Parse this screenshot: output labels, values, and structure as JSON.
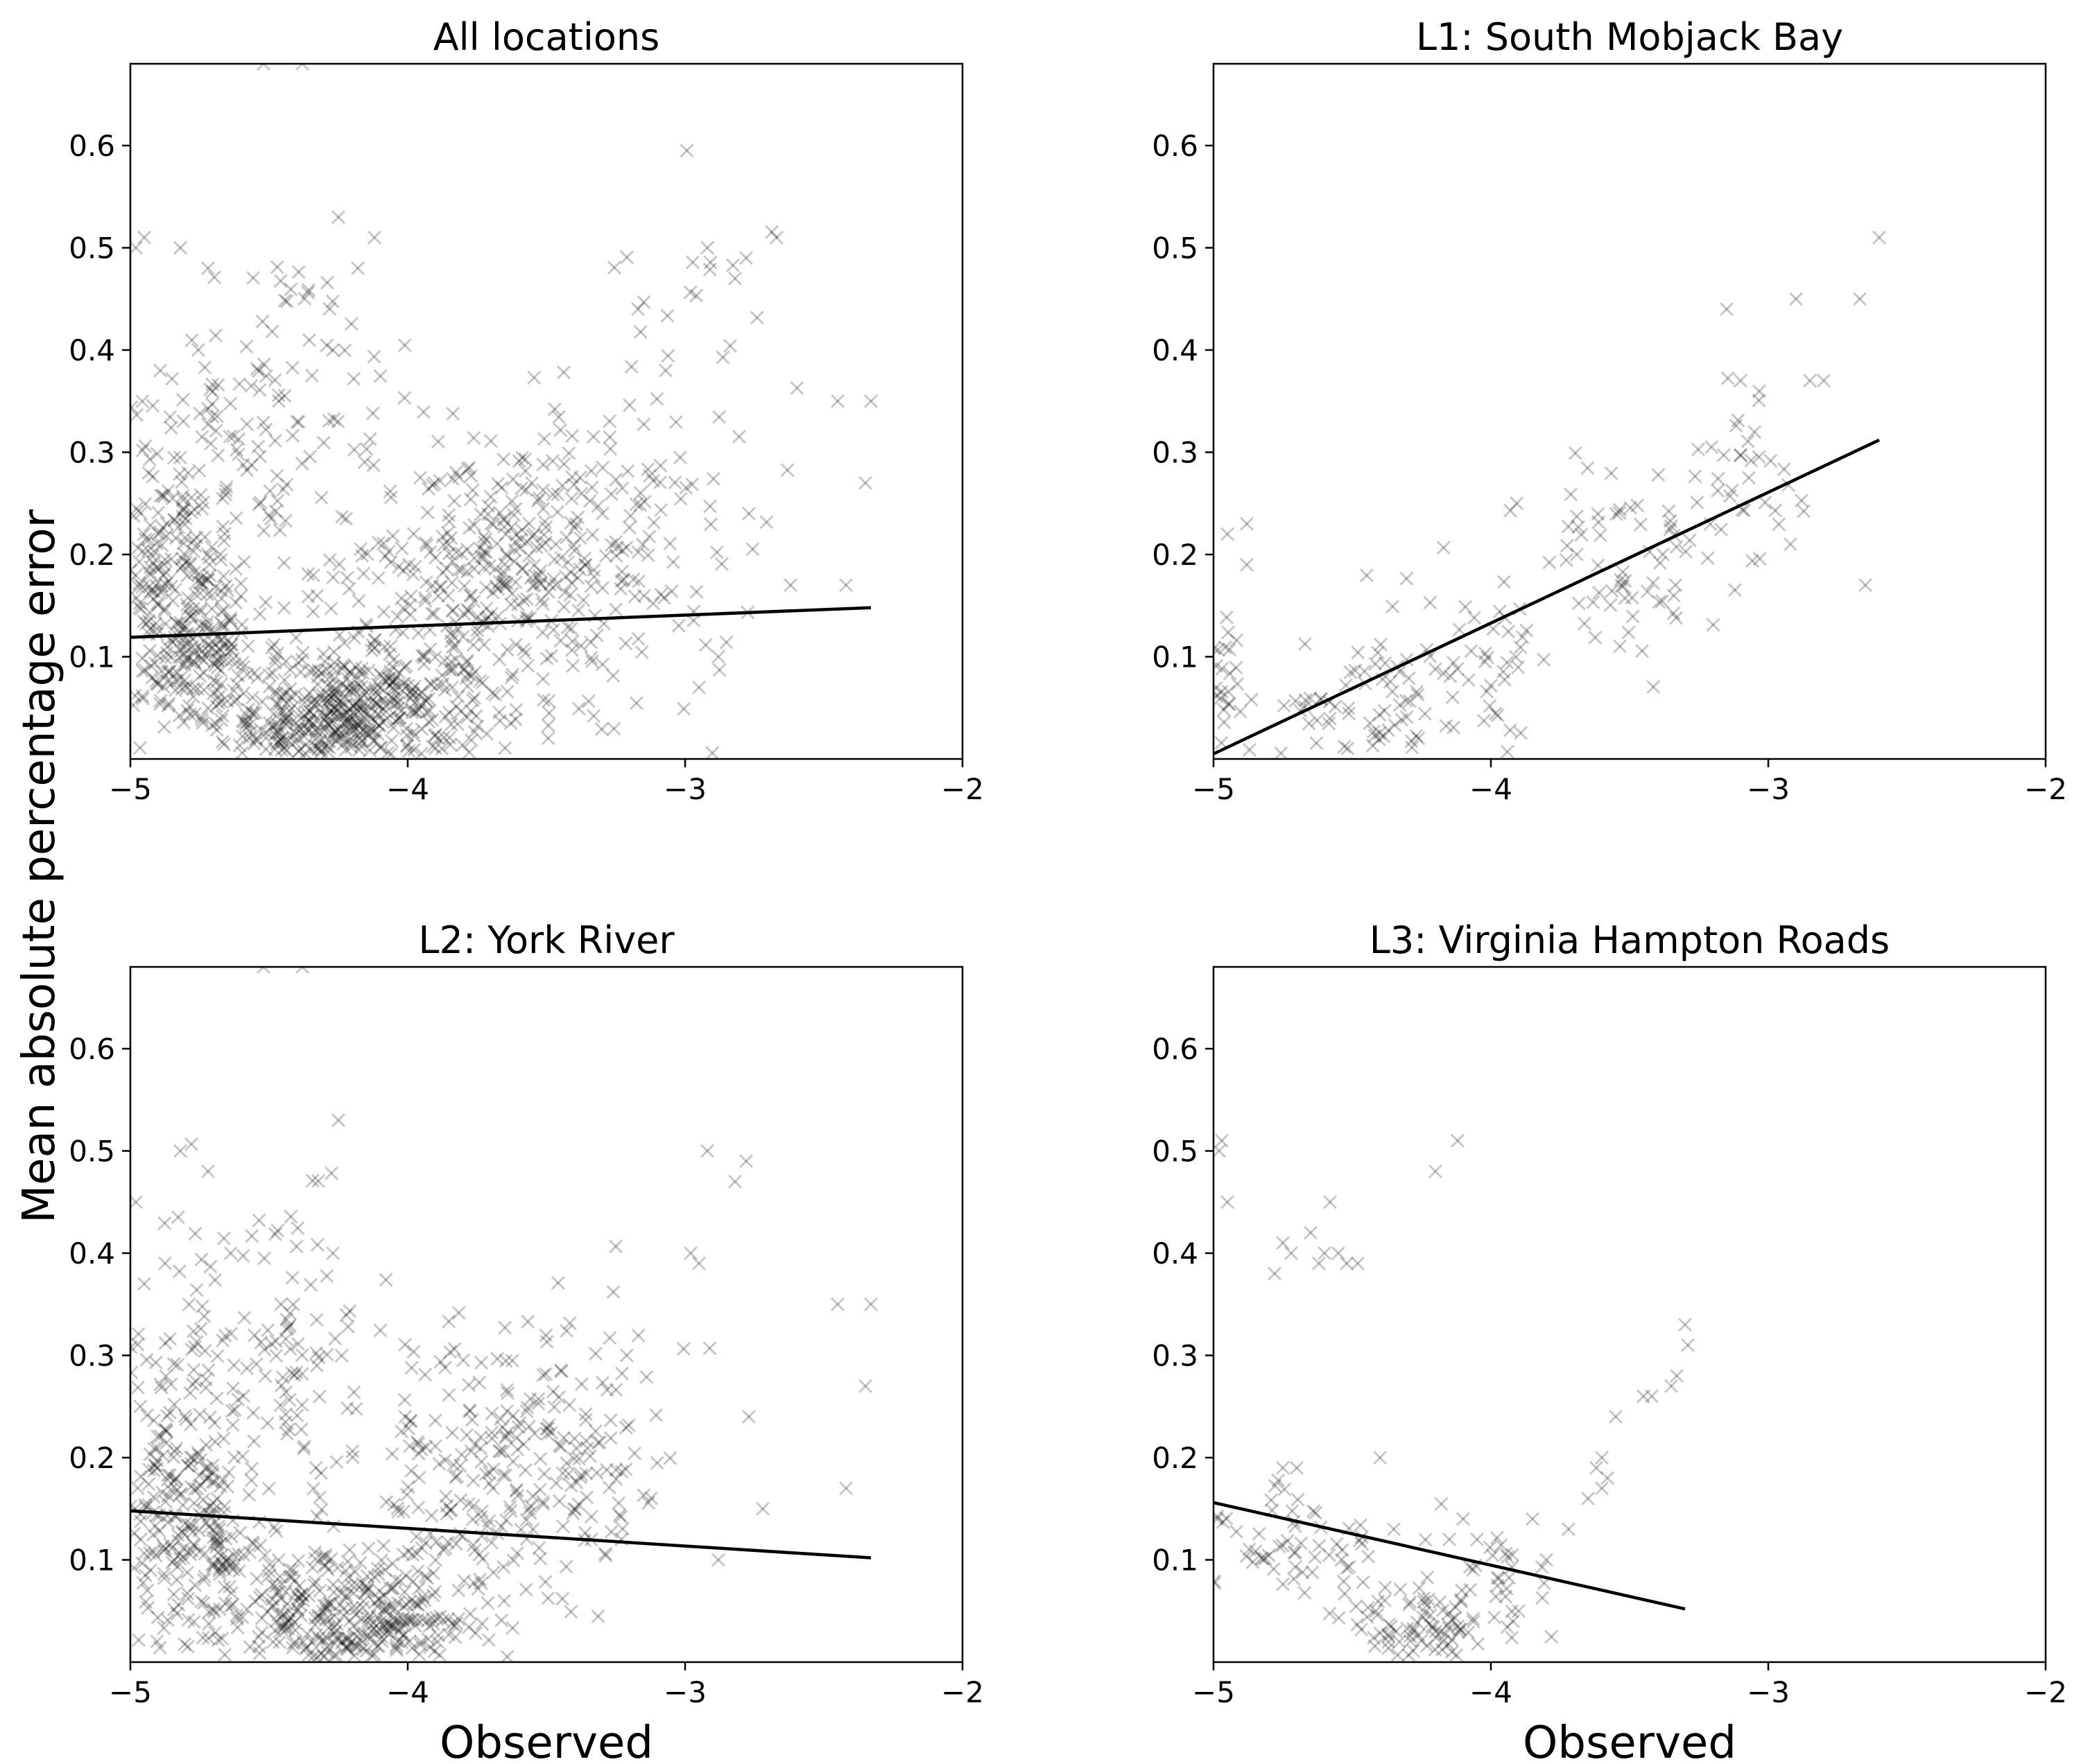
{
  "figure": {
    "ylabel": "Mean absolute percentage error",
    "xlabel": "Observed"
  },
  "chart_data": [
    {
      "type": "scatter",
      "title": "All locations",
      "xlabel": "",
      "ylabel": "",
      "xlim": [
        -5,
        -2
      ],
      "ylim": [
        0,
        0.68
      ],
      "xticks": [
        -5,
        -4,
        -3,
        -2
      ],
      "yticks": [
        0.1,
        0.2,
        0.3,
        0.4,
        0.5,
        0.6
      ],
      "marker": "x",
      "marker_color": "#000000",
      "grid": false,
      "clusters": [
        {
          "cx": -4.22,
          "cy": 0.04,
          "sx": 0.22,
          "sy": 0.035,
          "n": 520
        },
        {
          "cx": -4.85,
          "cy": 0.15,
          "sx": 0.12,
          "sy": 0.07,
          "n": 260
        },
        {
          "cx": -3.75,
          "cy": 0.17,
          "sx": 0.22,
          "sy": 0.07,
          "n": 280
        },
        {
          "cx": -3.35,
          "cy": 0.22,
          "sx": 0.18,
          "sy": 0.08,
          "n": 120
        },
        {
          "cx": -4.55,
          "cy": 0.3,
          "sx": 0.25,
          "sy": 0.08,
          "n": 150
        },
        {
          "cx": -4.7,
          "cy": 0.11,
          "sx": 0.06,
          "sy": 0.03,
          "n": 60
        },
        {
          "cx": -3.0,
          "cy": 0.3,
          "sx": 0.2,
          "sy": 0.12,
          "n": 60
        }
      ],
      "points": [
        {
          "x": -4.98,
          "y": 0.5
        },
        {
          "x": -4.95,
          "y": 0.51
        },
        {
          "x": -4.82,
          "y": 0.5
        },
        {
          "x": -4.72,
          "y": 0.48
        },
        {
          "x": -4.25,
          "y": 0.53
        },
        {
          "x": -4.12,
          "y": 0.51
        },
        {
          "x": -4.18,
          "y": 0.48
        },
        {
          "x": -4.52,
          "y": 0.68
        },
        {
          "x": -4.38,
          "y": 0.68
        },
        {
          "x": -4.27,
          "y": 0.4
        },
        {
          "x": -2.92,
          "y": 0.5
        },
        {
          "x": -2.78,
          "y": 0.49
        },
        {
          "x": -2.67,
          "y": 0.51
        },
        {
          "x": -2.82,
          "y": 0.47
        },
        {
          "x": -2.45,
          "y": 0.35
        },
        {
          "x": -2.33,
          "y": 0.35
        },
        {
          "x": -2.35,
          "y": 0.27
        },
        {
          "x": -2.42,
          "y": 0.17
        },
        {
          "x": -2.62,
          "y": 0.17
        },
        {
          "x": -2.77,
          "y": 0.24
        },
        {
          "x": -3.07,
          "y": 0.38
        },
        {
          "x": -3.17,
          "y": 0.44
        },
        {
          "x": -2.88,
          "y": 0.1
        },
        {
          "x": -2.95,
          "y": 0.07
        }
      ],
      "fit_line": {
        "x": [
          -5,
          -2.33
        ],
        "y": [
          0.119,
          0.148
        ]
      }
    },
    {
      "type": "scatter",
      "title": "L1: South Mobjack Bay",
      "xlabel": "",
      "ylabel": "",
      "xlim": [
        -5,
        -2
      ],
      "ylim": [
        0,
        0.68
      ],
      "xticks": [
        -5,
        -4,
        -3,
        -2
      ],
      "yticks": [
        0.1,
        0.2,
        0.3,
        0.4,
        0.5,
        0.6
      ],
      "marker": "x",
      "marker_color": "#000000",
      "grid": false,
      "clusters": [
        {
          "cx": -4.97,
          "cy": 0.08,
          "sx": 0.03,
          "sy": 0.025,
          "n": 25
        },
        {
          "cx": -4.5,
          "cy": 0.05,
          "sx": 0.22,
          "sy": 0.03,
          "n": 70
        },
        {
          "cx": -4.05,
          "cy": 0.09,
          "sx": 0.15,
          "sy": 0.05,
          "n": 50
        },
        {
          "cx": -3.55,
          "cy": 0.2,
          "sx": 0.2,
          "sy": 0.05,
          "n": 70
        },
        {
          "cx": -3.15,
          "cy": 0.27,
          "sx": 0.15,
          "sy": 0.05,
          "n": 35
        }
      ],
      "points": [
        {
          "x": -2.6,
          "y": 0.51
        },
        {
          "x": -2.67,
          "y": 0.45
        },
        {
          "x": -2.9,
          "y": 0.45
        },
        {
          "x": -3.15,
          "y": 0.44
        },
        {
          "x": -2.8,
          "y": 0.37
        },
        {
          "x": -2.85,
          "y": 0.37
        },
        {
          "x": -3.1,
          "y": 0.37
        },
        {
          "x": -2.65,
          "y": 0.17
        },
        {
          "x": -2.92,
          "y": 0.21
        },
        {
          "x": -4.95,
          "y": 0.22
        },
        {
          "x": -4.88,
          "y": 0.23
        },
        {
          "x": -4.88,
          "y": 0.19
        }
      ],
      "fit_line": {
        "x": [
          -5,
          -2.6
        ],
        "y": [
          0.005,
          0.312
        ]
      }
    },
    {
      "type": "scatter",
      "title": "L2: York River",
      "xlabel": "Observed",
      "ylabel": "",
      "xlim": [
        -5,
        -2
      ],
      "ylim": [
        0,
        0.68
      ],
      "xticks": [
        -5,
        -4,
        -3,
        -2
      ],
      "yticks": [
        0.1,
        0.2,
        0.3,
        0.4,
        0.5,
        0.6
      ],
      "marker": "x",
      "marker_color": "#000000",
      "grid": false,
      "clusters": [
        {
          "cx": -4.2,
          "cy": 0.04,
          "sx": 0.22,
          "sy": 0.035,
          "n": 380
        },
        {
          "cx": -4.85,
          "cy": 0.16,
          "sx": 0.12,
          "sy": 0.07,
          "n": 220
        },
        {
          "cx": -3.75,
          "cy": 0.17,
          "sx": 0.22,
          "sy": 0.07,
          "n": 200
        },
        {
          "cx": -3.35,
          "cy": 0.21,
          "sx": 0.18,
          "sy": 0.07,
          "n": 80
        },
        {
          "cx": -4.55,
          "cy": 0.3,
          "sx": 0.25,
          "sy": 0.08,
          "n": 130
        },
        {
          "cx": -4.68,
          "cy": 0.11,
          "sx": 0.06,
          "sy": 0.03,
          "n": 50
        }
      ],
      "points": [
        {
          "x": -4.82,
          "y": 0.5
        },
        {
          "x": -4.72,
          "y": 0.48
        },
        {
          "x": -4.25,
          "y": 0.53
        },
        {
          "x": -4.52,
          "y": 0.68
        },
        {
          "x": -4.38,
          "y": 0.68
        },
        {
          "x": -4.27,
          "y": 0.4
        },
        {
          "x": -2.92,
          "y": 0.5
        },
        {
          "x": -2.78,
          "y": 0.49
        },
        {
          "x": -2.82,
          "y": 0.47
        },
        {
          "x": -2.45,
          "y": 0.35
        },
        {
          "x": -2.33,
          "y": 0.35
        },
        {
          "x": -2.35,
          "y": 0.27
        },
        {
          "x": -2.42,
          "y": 0.17
        },
        {
          "x": -2.72,
          "y": 0.15
        },
        {
          "x": -2.77,
          "y": 0.24
        },
        {
          "x": -2.98,
          "y": 0.4
        },
        {
          "x": -2.95,
          "y": 0.39
        },
        {
          "x": -2.88,
          "y": 0.1
        },
        {
          "x": -4.98,
          "y": 0.45
        },
        {
          "x": -4.95,
          "y": 0.37
        }
      ],
      "fit_line": {
        "x": [
          -5,
          -2.33
        ],
        "y": [
          0.148,
          0.102
        ]
      }
    },
    {
      "type": "scatter",
      "title": "L3: Virginia Hampton Roads",
      "xlabel": "Observed",
      "ylabel": "",
      "xlim": [
        -5,
        -2
      ],
      "ylim": [
        0,
        0.68
      ],
      "xticks": [
        -5,
        -4,
        -3,
        -2
      ],
      "yticks": [
        0.1,
        0.2,
        0.3,
        0.4,
        0.5,
        0.6
      ],
      "marker": "x",
      "marker_color": "#000000",
      "grid": false,
      "clusters": [
        {
          "cx": -4.22,
          "cy": 0.03,
          "sx": 0.12,
          "sy": 0.025,
          "n": 90
        },
        {
          "cx": -4.8,
          "cy": 0.12,
          "sx": 0.15,
          "sy": 0.03,
          "n": 45
        },
        {
          "cx": -3.95,
          "cy": 0.09,
          "sx": 0.08,
          "sy": 0.03,
          "n": 25
        },
        {
          "cx": -4.5,
          "cy": 0.09,
          "sx": 0.12,
          "sy": 0.03,
          "n": 20
        }
      ],
      "points": [
        {
          "x": -4.98,
          "y": 0.5
        },
        {
          "x": -4.97,
          "y": 0.51
        },
        {
          "x": -4.95,
          "y": 0.45
        },
        {
          "x": -4.2,
          "y": 0.48
        },
        {
          "x": -4.12,
          "y": 0.51
        },
        {
          "x": -4.78,
          "y": 0.38
        },
        {
          "x": -4.75,
          "y": 0.41
        },
        {
          "x": -4.72,
          "y": 0.4
        },
        {
          "x": -4.65,
          "y": 0.42
        },
        {
          "x": -4.6,
          "y": 0.4
        },
        {
          "x": -4.58,
          "y": 0.45
        },
        {
          "x": -4.55,
          "y": 0.4
        },
        {
          "x": -4.52,
          "y": 0.39
        },
        {
          "x": -4.48,
          "y": 0.39
        },
        {
          "x": -4.62,
          "y": 0.39
        },
        {
          "x": -3.3,
          "y": 0.33
        },
        {
          "x": -3.29,
          "y": 0.31
        },
        {
          "x": -3.33,
          "y": 0.28
        },
        {
          "x": -3.35,
          "y": 0.27
        },
        {
          "x": -3.42,
          "y": 0.26
        },
        {
          "x": -3.45,
          "y": 0.26
        },
        {
          "x": -3.55,
          "y": 0.24
        },
        {
          "x": -3.6,
          "y": 0.2
        },
        {
          "x": -3.62,
          "y": 0.19
        },
        {
          "x": -3.58,
          "y": 0.18
        },
        {
          "x": -3.6,
          "y": 0.17
        },
        {
          "x": -3.65,
          "y": 0.16
        },
        {
          "x": -3.72,
          "y": 0.13
        },
        {
          "x": -3.8,
          "y": 0.1
        },
        {
          "x": -3.85,
          "y": 0.14
        },
        {
          "x": -4.05,
          "y": 0.12
        },
        {
          "x": -4.1,
          "y": 0.14
        },
        {
          "x": -4.15,
          "y": 0.12
        },
        {
          "x": -4.4,
          "y": 0.2
        },
        {
          "x": -4.35,
          "y": 0.13
        },
        {
          "x": -4.7,
          "y": 0.19
        },
        {
          "x": -4.75,
          "y": 0.19
        },
        {
          "x": -3.92,
          "y": 0.04
        },
        {
          "x": -3.9,
          "y": 0.05
        }
      ],
      "fit_line": {
        "x": [
          -5,
          -3.3
        ],
        "y": [
          0.156,
          0.052
        ]
      }
    }
  ]
}
